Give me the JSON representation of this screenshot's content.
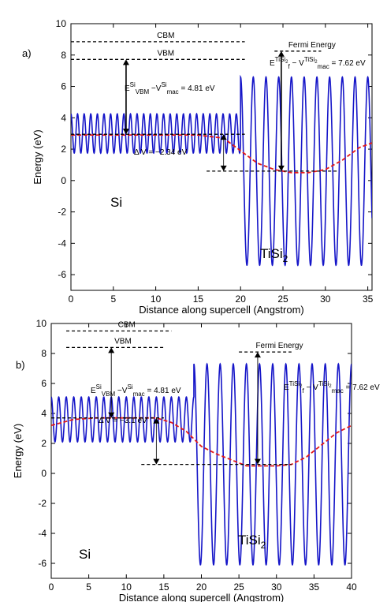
{
  "chart_data": [
    {
      "type": "line",
      "panel_label": "a)",
      "xlabel": "Distance along supercell (Angstrom)",
      "ylabel": "Energy (eV)",
      "xlim": [
        0,
        35.5
      ],
      "ylim": [
        -7,
        10
      ],
      "xticks": [
        "0",
        "5",
        "10",
        "15",
        "20",
        "25",
        "30",
        "35"
      ],
      "yticks": [
        "-6",
        "-4",
        "-2",
        "0",
        "2",
        "4",
        "6",
        "8",
        "10"
      ],
      "series": [
        {
          "style": "solid",
          "color": "#1515c8",
          "kind": "planar-averaged electrostatic potential",
          "regions": [
            {
              "x_start": 0,
              "x_end": 20,
              "center": 3.0,
              "amplitude": 1.25,
              "period": 0.78
            },
            {
              "x_start": 20,
              "x_end": 35.5,
              "center": 0.6,
              "amplitude": 6.0,
              "period": 1.5
            }
          ]
        },
        {
          "style": "dashed",
          "color": "#e41a1a",
          "kind": "macroscopic average",
          "x": [
            0,
            5,
            10,
            15,
            18,
            20,
            22,
            24,
            26,
            28,
            30,
            32,
            34,
            35.5
          ],
          "y": [
            2.9,
            2.9,
            2.9,
            2.9,
            2.7,
            1.9,
            1.1,
            0.7,
            0.5,
            0.5,
            0.7,
            1.3,
            2.1,
            2.4
          ]
        }
      ],
      "reference_lines": [
        {
          "label": "CBM",
          "y": 8.85,
          "x": [
            0,
            20.5
          ]
        },
        {
          "label": "VBM",
          "y": 7.72,
          "x": [
            0,
            20.5
          ]
        },
        {
          "label": "Fermi Energy",
          "y": 8.25,
          "x": [
            24,
            29.5
          ]
        },
        {
          "label": "",
          "y": 2.95,
          "x": [
            0,
            20.5
          ]
        },
        {
          "label": "",
          "y": 0.6,
          "x": [
            16,
            31.5
          ]
        }
      ],
      "annotations": {
        "region_left": "Si",
        "region_right": "TiSi",
        "region_right_sub": "2",
        "vbm_offset": {
          "E": "E",
          "E_sup": "Si",
          "E_sub": "VBM",
          "V": "V",
          "V_sup": "Si",
          "V_sub": "mac",
          "value": " = 4.81 eV"
        },
        "fermi_offset": {
          "E": "E",
          "E_sup": "TiSi",
          "E_sup_sub": "2",
          "E_sub": "f",
          "V": "V",
          "V_sup": "TiSi",
          "V_sup_sub": "2",
          "V_sub": "mac",
          "value": " = 7.62 eV"
        },
        "delta_v": "Δ V = −2.34 eV"
      }
    },
    {
      "type": "line",
      "panel_label": "b)",
      "xlabel": "Distance along supercell (Angstrom)",
      "ylabel": "Energy (eV)",
      "xlim": [
        0,
        40
      ],
      "ylim": [
        -7,
        10
      ],
      "xticks": [
        "0",
        "5",
        "10",
        "15",
        "20",
        "25",
        "30",
        "35",
        "40"
      ],
      "yticks": [
        "-6",
        "-4",
        "-2",
        "0",
        "2",
        "4",
        "6",
        "8",
        "10"
      ],
      "series": [
        {
          "style": "solid",
          "color": "#1515c8",
          "kind": "planar-averaged electrostatic potential",
          "regions": [
            {
              "x_start": 0,
              "x_end": 19,
              "center": 3.6,
              "amplitude": 1.5,
              "period": 1.0
            },
            {
              "x_start": 19,
              "x_end": 40,
              "center": 0.6,
              "amplitude": 6.7,
              "period": 1.75
            }
          ]
        },
        {
          "style": "dashed",
          "color": "#e41a1a",
          "kind": "macroscopic average",
          "x": [
            0,
            3,
            6,
            10,
            14,
            16,
            18,
            20,
            22,
            24,
            26,
            28,
            30,
            32,
            34,
            36,
            38,
            40
          ],
          "y": [
            3.2,
            3.6,
            3.7,
            3.7,
            3.7,
            3.4,
            2.8,
            1.8,
            1.3,
            0.9,
            0.5,
            0.5,
            0.5,
            0.6,
            1.1,
            1.9,
            2.7,
            3.2
          ]
        }
      ],
      "reference_lines": [
        {
          "label": "CBM",
          "y": 9.5,
          "x": [
            2,
            16
          ]
        },
        {
          "label": "VBM",
          "y": 8.4,
          "x": [
            2,
            15
          ]
        },
        {
          "label": "Fermi Energy",
          "y": 8.1,
          "x": [
            25,
            32
          ]
        },
        {
          "label": "",
          "y": 3.7,
          "x": [
            0,
            15
          ]
        },
        {
          "label": "",
          "y": 0.6,
          "x": [
            12,
            32
          ]
        }
      ],
      "annotations": {
        "region_left": "Si",
        "region_right": "TiSi",
        "region_right_sub": "2",
        "vbm_offset": {
          "E": "E",
          "E_sup": "Si",
          "E_sub": "VBM",
          "V": "V",
          "V_sup": "Si",
          "V_sub": "mac",
          "value": " = 4.81 eV"
        },
        "fermi_offset": {
          "E": "E",
          "E_sup": "TiSi",
          "E_sup_sub": "2",
          "E_sub": "f",
          "V": "V",
          "V_sup": "TiSi",
          "V_sup_sub": "2",
          "V_sub": "mac",
          "value": " = 7.62 eV"
        },
        "delta_v": "Δ V = −3.1 eV"
      }
    }
  ]
}
